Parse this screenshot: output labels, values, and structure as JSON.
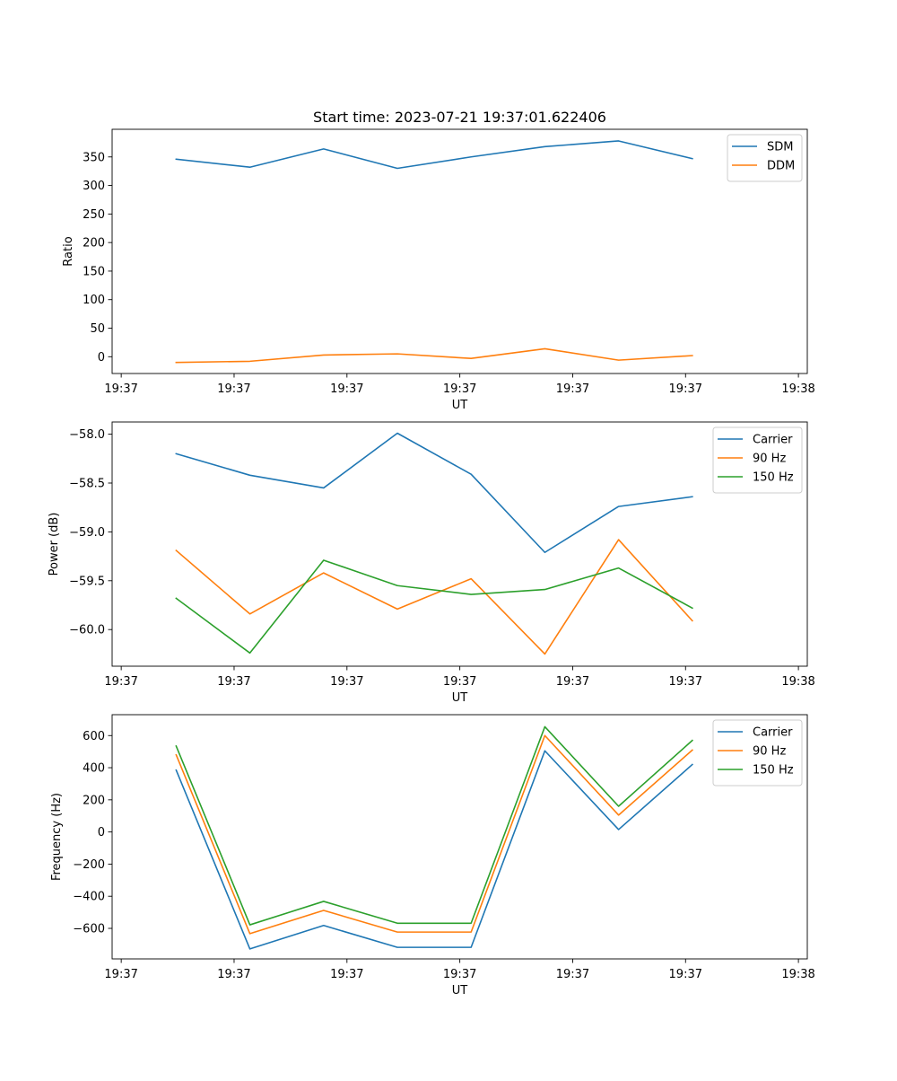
{
  "figure": {
    "title": "Start time: 2023-07-21 19:37:01.622406"
  },
  "colors": {
    "blue": "#1f77b4",
    "orange": "#ff7f0e",
    "green": "#2ca02c"
  },
  "chart_data": [
    {
      "type": "line",
      "title": "Start time: 2023-07-21 19:37:01.622406",
      "xlabel": "UT",
      "ylabel": "Ratio",
      "xlim": [
        -0.121,
        9.118
      ],
      "ylim": [
        -29.4,
        398.4
      ],
      "x_tick_positions": [
        0,
        1.5,
        3,
        4.5,
        6,
        7.5,
        9
      ],
      "x_tick_labels": [
        "19:37",
        "19:37",
        "19:37",
        "19:37",
        "19:37",
        "19:37",
        "19:38"
      ],
      "y_ticks": [
        0,
        50,
        100,
        150,
        200,
        250,
        300,
        350
      ],
      "y_tick_labels": [
        "0",
        "50",
        "100",
        "150",
        "200",
        "250",
        "300",
        "350"
      ],
      "legend_position": "upper right",
      "x": [
        0.73,
        1.71,
        2.69,
        3.67,
        4.65,
        5.63,
        6.61,
        7.59
      ],
      "series": [
        {
          "name": "SDM",
          "color": "#1f77b4",
          "values": [
            346,
            332,
            364,
            330,
            350,
            368,
            378,
            347
          ]
        },
        {
          "name": "DDM",
          "color": "#ff7f0e",
          "values": [
            -10,
            -8,
            3,
            5,
            -3,
            14,
            -6,
            2
          ]
        }
      ]
    },
    {
      "type": "line",
      "title": "",
      "xlabel": "UT",
      "ylabel": "Power (dB)",
      "xlim": [
        -0.121,
        9.118
      ],
      "ylim": [
        -60.375,
        -57.875
      ],
      "x_tick_positions": [
        0,
        1.5,
        3,
        4.5,
        6,
        7.5,
        9
      ],
      "x_tick_labels": [
        "19:37",
        "19:37",
        "19:37",
        "19:37",
        "19:37",
        "19:37",
        "19:38"
      ],
      "y_ticks": [
        -60.0,
        -59.5,
        -59.0,
        -58.5,
        -58.0
      ],
      "y_tick_labels": [
        "−60.0",
        "−59.5",
        "−59.0",
        "−58.5",
        "−58.0"
      ],
      "legend_position": "upper right",
      "x": [
        0.73,
        1.71,
        2.69,
        3.67,
        4.65,
        5.63,
        6.61,
        7.59
      ],
      "series": [
        {
          "name": "Carrier",
          "color": "#1f77b4",
          "values": [
            -58.2,
            -58.42,
            -58.55,
            -57.99,
            -58.41,
            -59.21,
            -58.74,
            -58.64
          ]
        },
        {
          "name": "90 Hz",
          "color": "#ff7f0e",
          "values": [
            -59.19,
            -59.84,
            -59.42,
            -59.79,
            -59.48,
            -60.25,
            -59.08,
            -59.91
          ]
        },
        {
          "name": "150 Hz",
          "color": "#2ca02c",
          "values": [
            -59.68,
            -60.24,
            -59.29,
            -59.55,
            -59.64,
            -59.59,
            -59.37,
            -59.78
          ]
        }
      ]
    },
    {
      "type": "line",
      "title": "",
      "xlabel": "UT",
      "ylabel": "Frequency (Hz)",
      "xlim": [
        -0.121,
        9.118
      ],
      "ylim": [
        -790,
        730
      ],
      "x_tick_positions": [
        0,
        1.5,
        3,
        4.5,
        6,
        7.5,
        9
      ],
      "x_tick_labels": [
        "19:37",
        "19:37",
        "19:37",
        "19:37",
        "19:37",
        "19:37",
        "19:38"
      ],
      "y_ticks": [
        -600,
        -400,
        -200,
        0,
        200,
        400,
        600
      ],
      "y_tick_labels": [
        "−600",
        "−400",
        "−200",
        "0",
        "200",
        "400",
        "600"
      ],
      "legend_position": "upper right",
      "x": [
        0.73,
        1.71,
        2.69,
        3.67,
        4.65,
        5.63,
        6.61,
        7.59
      ],
      "series": [
        {
          "name": "Carrier",
          "color": "#1f77b4",
          "values": [
            385,
            -728,
            -582,
            -718,
            -718,
            505,
            15,
            420
          ]
        },
        {
          "name": "90 Hz",
          "color": "#ff7f0e",
          "values": [
            480,
            -633,
            -488,
            -623,
            -623,
            600,
            105,
            510
          ]
        },
        {
          "name": "150 Hz",
          "color": "#2ca02c",
          "values": [
            535,
            -578,
            -432,
            -568,
            -568,
            655,
            160,
            570
          ]
        }
      ]
    }
  ]
}
